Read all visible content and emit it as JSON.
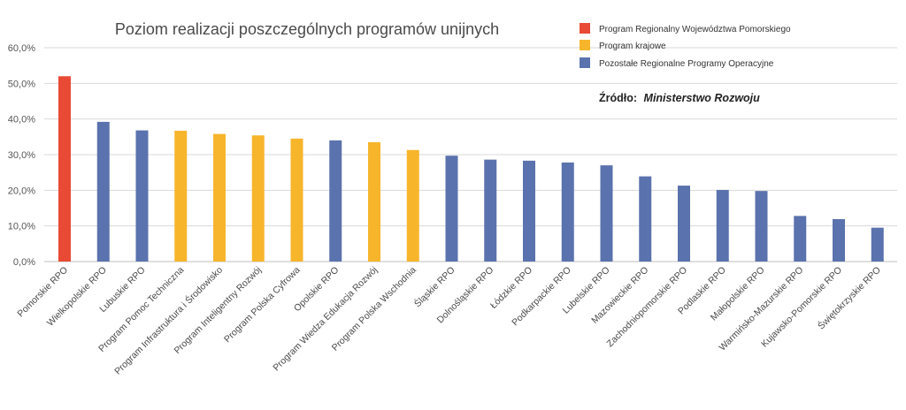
{
  "chart_data": {
    "type": "bar",
    "title": "Poziom realizacji poszczególnych programów unijnych",
    "xlabel": "",
    "ylabel": "",
    "ylim": [
      0,
      60
    ],
    "yticks": [
      0,
      10,
      20,
      30,
      40,
      50,
      60
    ],
    "ytick_labels": [
      "0,0%",
      "10,0%",
      "20,0%",
      "30,0%",
      "40,0%",
      "50,0%",
      "60,0%"
    ],
    "grid": true,
    "legend_position": "top-right",
    "legend": [
      {
        "name": "Program Regionalny Województwa Pomorskiego",
        "color": "#e84a35"
      },
      {
        "name": "Program krajowe",
        "color": "#f7b52c"
      },
      {
        "name": "Pozostałe Regionalne Programy Operacyjne",
        "color": "#5a72ad"
      }
    ],
    "source_label": "Źródło:",
    "source_value": "Ministerstwo Rozwoju",
    "categories": [
      "Pomorskie RPO",
      "Wielkopolskie RPO",
      "Lubuskie RPO",
      "Program  Pomoc Techniczna",
      "Program  Infrastruktura i Środowisko",
      "Program  Inteligentny Rozwój",
      "Program Polska Cyfrowa",
      "Opolskie RPO",
      "Program  Wiedza Edukacja Rozwój",
      "Program Polska Wschodnia",
      "Śląskie RPO",
      "Dolnośląskie RPO",
      "Łódzkie RPO",
      "Podkarpackie RPO",
      "Lubelskie RPO",
      "Mazowieckie RPO",
      "Zachodniopomorskie RPO",
      "Podlaskie RPO",
      "Małopolskie RPO",
      "Warmińsko-Mazurskie RPO",
      "Kujawsko-Pomorskie RPO",
      "Świętokrzyskie RPO"
    ],
    "values": [
      52.0,
      39.2,
      36.8,
      36.7,
      35.8,
      35.4,
      34.5,
      34.0,
      33.5,
      31.3,
      29.7,
      28.6,
      28.3,
      27.8,
      27.0,
      23.9,
      21.3,
      20.1,
      19.8,
      12.8,
      11.9,
      9.5
    ],
    "groups": [
      0,
      2,
      2,
      1,
      1,
      1,
      1,
      2,
      1,
      1,
      2,
      2,
      2,
      2,
      2,
      2,
      2,
      2,
      2,
      2,
      2,
      2
    ]
  }
}
